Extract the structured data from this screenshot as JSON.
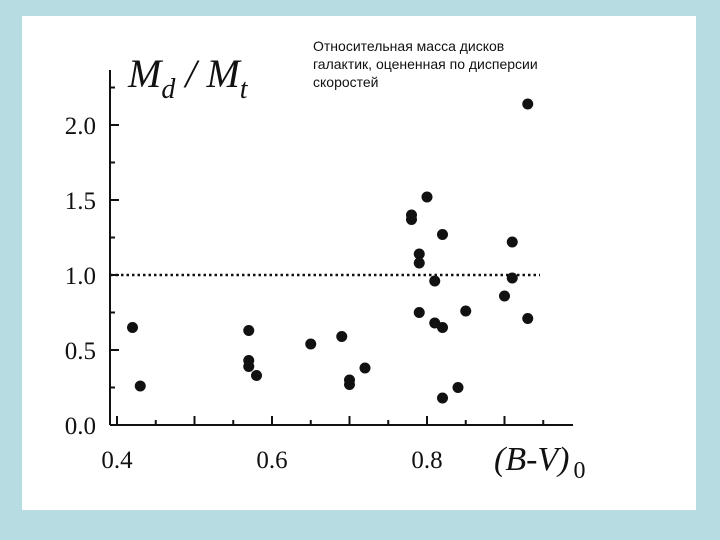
{
  "caption": "Относительная масса дисков\nгалактик, оцененная по дисперсии\nскоростей",
  "colors": {
    "background": "#b7dde3",
    "panel": "#ffffff",
    "ink": "#111111"
  },
  "chart_data": {
    "type": "scatter",
    "ylabel": {
      "main": "M",
      "sub1": "d",
      "slash": " / ",
      "main2": "M",
      "sub2": "t"
    },
    "xlabel": {
      "main": "(B-V)",
      "sub": "0"
    },
    "x_ticks": [
      "0.4",
      "0.6",
      "0.8"
    ],
    "y_ticks": [
      "0.0",
      "0.5",
      "1.0",
      "1.5",
      "2.0"
    ],
    "xlim": [
      0.39,
      0.99
    ],
    "ylim": [
      0.0,
      2.35
    ],
    "reference_line": {
      "y": 1.0,
      "style": "dotted"
    },
    "points": [
      {
        "x": 0.42,
        "y": 0.65
      },
      {
        "x": 0.43,
        "y": 0.26
      },
      {
        "x": 0.57,
        "y": 0.63
      },
      {
        "x": 0.57,
        "y": 0.43
      },
      {
        "x": 0.57,
        "y": 0.39
      },
      {
        "x": 0.58,
        "y": 0.33
      },
      {
        "x": 0.65,
        "y": 0.54
      },
      {
        "x": 0.69,
        "y": 0.59
      },
      {
        "x": 0.7,
        "y": 0.3
      },
      {
        "x": 0.7,
        "y": 0.27
      },
      {
        "x": 0.72,
        "y": 0.38
      },
      {
        "x": 0.78,
        "y": 1.4
      },
      {
        "x": 0.78,
        "y": 1.37
      },
      {
        "x": 0.79,
        "y": 1.14
      },
      {
        "x": 0.79,
        "y": 1.08
      },
      {
        "x": 0.79,
        "y": 0.75
      },
      {
        "x": 0.8,
        "y": 1.52
      },
      {
        "x": 0.81,
        "y": 0.96
      },
      {
        "x": 0.81,
        "y": 0.68
      },
      {
        "x": 0.82,
        "y": 1.27
      },
      {
        "x": 0.82,
        "y": 0.65
      },
      {
        "x": 0.82,
        "y": 0.18
      },
      {
        "x": 0.84,
        "y": 0.25
      },
      {
        "x": 0.85,
        "y": 0.76
      },
      {
        "x": 0.9,
        "y": 0.86
      },
      {
        "x": 0.91,
        "y": 1.22
      },
      {
        "x": 0.91,
        "y": 0.98
      },
      {
        "x": 0.93,
        "y": 0.71
      },
      {
        "x": 0.93,
        "y": 2.14
      }
    ]
  }
}
